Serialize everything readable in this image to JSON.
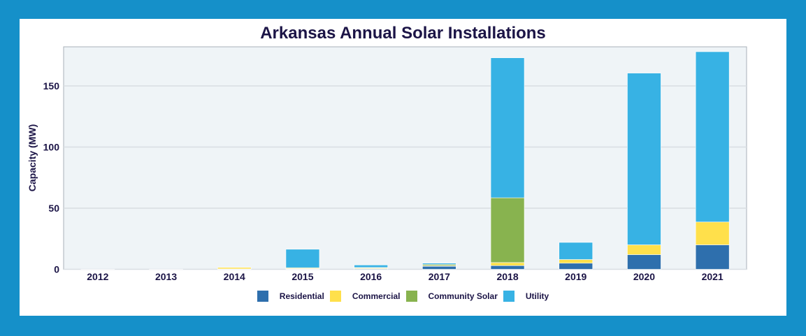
{
  "chart_data": {
    "type": "bar",
    "stacked": true,
    "title": "Arkansas Annual Solar Installations",
    "xlabel": "",
    "ylabel": "Capacity (MW)",
    "ylim": [
      0,
      182
    ],
    "yticks": [
      0,
      50,
      100,
      150
    ],
    "grid": true,
    "legend": "bottom",
    "categories": [
      "2012",
      "2013",
      "2014",
      "2015",
      "2016",
      "2017",
      "2018",
      "2019",
      "2020",
      "2021"
    ],
    "series": [
      {
        "name": "Residential",
        "color": "#2e6fad",
        "values": [
          0.1,
          0.1,
          0.3,
          0.3,
          0.5,
          2.5,
          3,
          5,
          12,
          20
        ]
      },
      {
        "name": "Commercial",
        "color": "#ffe04b",
        "values": [
          0,
          0,
          1.2,
          0.5,
          0.5,
          0.5,
          2.5,
          3,
          8,
          18.7
        ]
      },
      {
        "name": "Community Solar",
        "color": "#88b34f",
        "values": [
          0,
          0,
          0,
          0.5,
          0.5,
          1,
          53,
          0,
          0,
          0
        ]
      },
      {
        "name": "Utility",
        "color": "#37b2e4",
        "values": [
          0,
          0,
          0,
          15.1,
          2,
          1,
          114.5,
          14,
          140.5,
          139.3
        ]
      }
    ]
  }
}
